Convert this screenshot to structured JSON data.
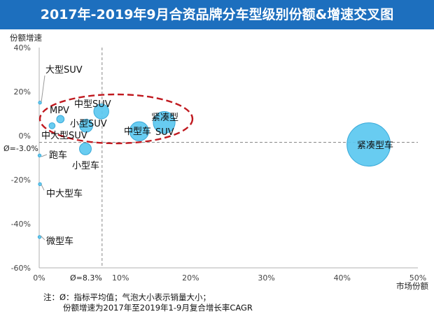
{
  "title": "2017年-2019年9月合资品牌分车型级别份额&增速交叉图",
  "colors": {
    "title_bar": "#1d6fbe",
    "bubble_fill": "#5bc8f0",
    "bubble_stroke": "#3aa9d8",
    "highlight_ellipse": "#c0191f",
    "reference_line": "#888888"
  },
  "chart_data": {
    "type": "scatter",
    "subtype": "bubble",
    "xlabel": "市场份额",
    "ylabel": "份额增速",
    "xlim": [
      0,
      50
    ],
    "ylim": [
      -60,
      40
    ],
    "x_ticks": [
      "0%",
      "10%",
      "20%",
      "30%",
      "40%",
      "50%"
    ],
    "y_ticks": [
      "40%",
      "20%",
      "0%",
      "-20%",
      "-40%",
      "-60%"
    ],
    "average_x": 8.3,
    "average_y": -3.0,
    "average_x_label": "Ø=8.3%",
    "average_y_label": "Ø=-3.0%",
    "points": [
      {
        "name": "大型SUV",
        "x": 0.1,
        "y": 15,
        "size": 0.3
      },
      {
        "name": "MPV",
        "x": 2.8,
        "y": 7.5,
        "size": 2
      },
      {
        "name": "中大型SUV",
        "x": 1.7,
        "y": 4.5,
        "size": 1.3
      },
      {
        "name": "小型SUV",
        "x": 6.2,
        "y": 4.5,
        "size": 6
      },
      {
        "name": "中型SUV",
        "x": 8.2,
        "y": 11,
        "size": 8
      },
      {
        "name": "中型车",
        "x": 13.2,
        "y": 2,
        "size": 13
      },
      {
        "name": "紧凑型SUV",
        "x": 16.5,
        "y": 6,
        "size": 17
      },
      {
        "name": "紧凑型车",
        "x": 43.5,
        "y": -4,
        "size": 67
      },
      {
        "name": "跑车",
        "x": 0.05,
        "y": -9,
        "size": 0.2
      },
      {
        "name": "小型车",
        "x": 6.1,
        "y": -6,
        "size": 5
      },
      {
        "name": "中大型车",
        "x": 0.1,
        "y": -22,
        "size": 0.3
      },
      {
        "name": "微型车",
        "x": 0.05,
        "y": -46,
        "size": 0.2
      }
    ],
    "highlight_group": [
      "MPV",
      "中大型SUV",
      "小型SUV",
      "中型SUV",
      "中型车",
      "紧凑型SUV"
    ]
  },
  "notes": {
    "line1": "注：Ø：指标平均值；气泡大小表示销量大小；",
    "line2": "份额增速为2017年至2019年1-9月复合增长率CAGR"
  }
}
